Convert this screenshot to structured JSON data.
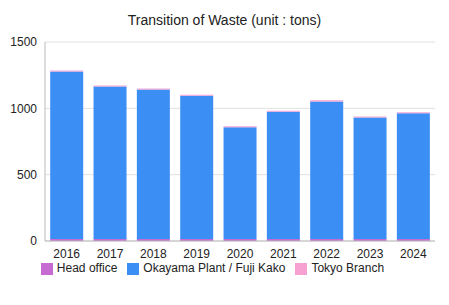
{
  "chart_data": {
    "type": "bar",
    "title": "Transition of Waste (unit : tons)",
    "categories": [
      "2016",
      "2017",
      "2018",
      "2019",
      "2020",
      "2021",
      "2022",
      "2023",
      "2024"
    ],
    "series": [
      {
        "name": "Head office",
        "color": "#c66bd1",
        "values": [
          15,
          15,
          15,
          15,
          15,
          15,
          15,
          15,
          15
        ]
      },
      {
        "name": "Okayama Plant / Fuji Kako",
        "color": "#3b8ef4",
        "values": [
          1262,
          1149,
          1127,
          1079,
          842,
          959,
          1037,
          915,
          947
        ]
      },
      {
        "name": "Tokyo Branch",
        "color": "#f7a1d3",
        "values": [
          8,
          8,
          8,
          8,
          8,
          8,
          8,
          8,
          8
        ]
      }
    ],
    "ylim": [
      0,
      1500
    ],
    "yticks": [
      0,
      500,
      1000,
      1500
    ],
    "grid": true,
    "stacked": true,
    "legend": "bottom"
  }
}
